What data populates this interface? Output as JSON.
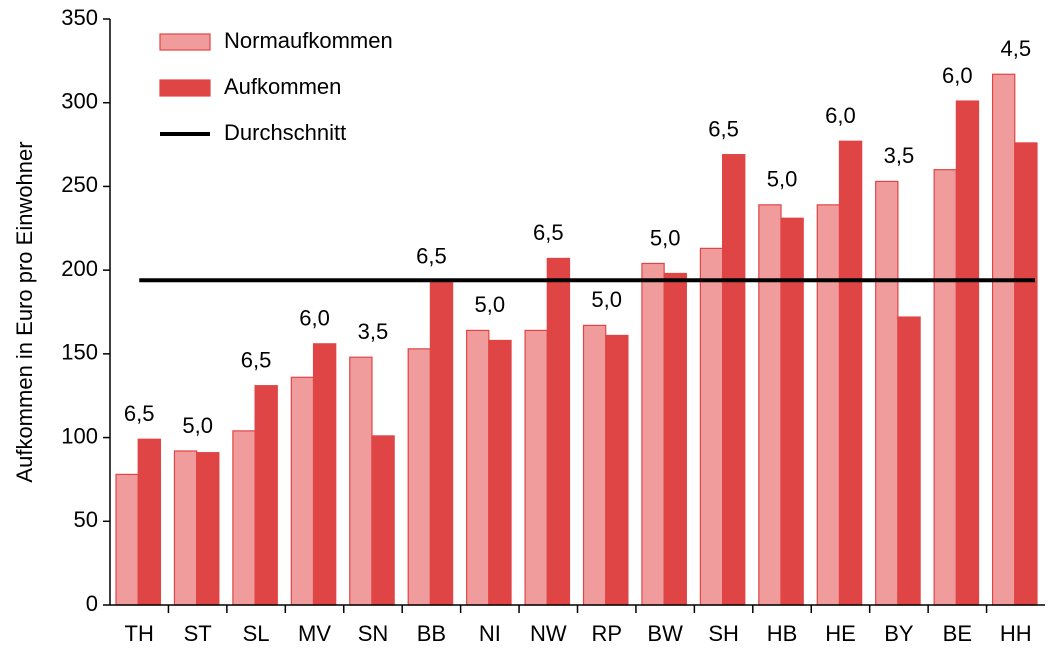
{
  "chart_data": {
    "type": "bar",
    "y_axis_label": "Aufkommen in Euro pro Einwohner",
    "categories": [
      "TH",
      "ST",
      "SL",
      "MV",
      "SN",
      "BB",
      "NI",
      "NW",
      "RP",
      "BW",
      "SH",
      "HB",
      "HE",
      "BY",
      "BE",
      "HH"
    ],
    "series": [
      {
        "name": "Normaufkommen",
        "color": "#f09c9c",
        "values": [
          78,
          92,
          104,
          136,
          148,
          153,
          164,
          164,
          167,
          204,
          213,
          239,
          239,
          253,
          260,
          317
        ]
      },
      {
        "name": "Aufkommen",
        "color": "#e04545",
        "values": [
          99,
          91,
          131,
          156,
          101,
          193,
          158,
          207,
          161,
          198,
          269,
          231,
          277,
          172,
          301,
          276
        ]
      }
    ],
    "average": {
      "name": "Durchschnitt",
      "color": "#000000",
      "value": 194
    },
    "rates": {
      "values": [
        6.5,
        5.0,
        6.5,
        6.0,
        3.5,
        6.5,
        5.0,
        6.5,
        5.0,
        5.0,
        6.5,
        5.0,
        6.0,
        3.5,
        6.0,
        4.5
      ],
      "value_labels": [
        "6,5",
        "5,0",
        "6,5",
        "6,0",
        "3,5",
        "6,5",
        "5,0",
        "6,5",
        "5,0",
        "5,0",
        "6,5",
        "5,0",
        "6,0",
        "3,5",
        "6,0",
        "4,5"
      ]
    },
    "ylim": [
      0,
      350
    ],
    "yticks": [
      0,
      50,
      100,
      150,
      200,
      250,
      300,
      350
    ],
    "grid": false,
    "legend": "top-left"
  }
}
